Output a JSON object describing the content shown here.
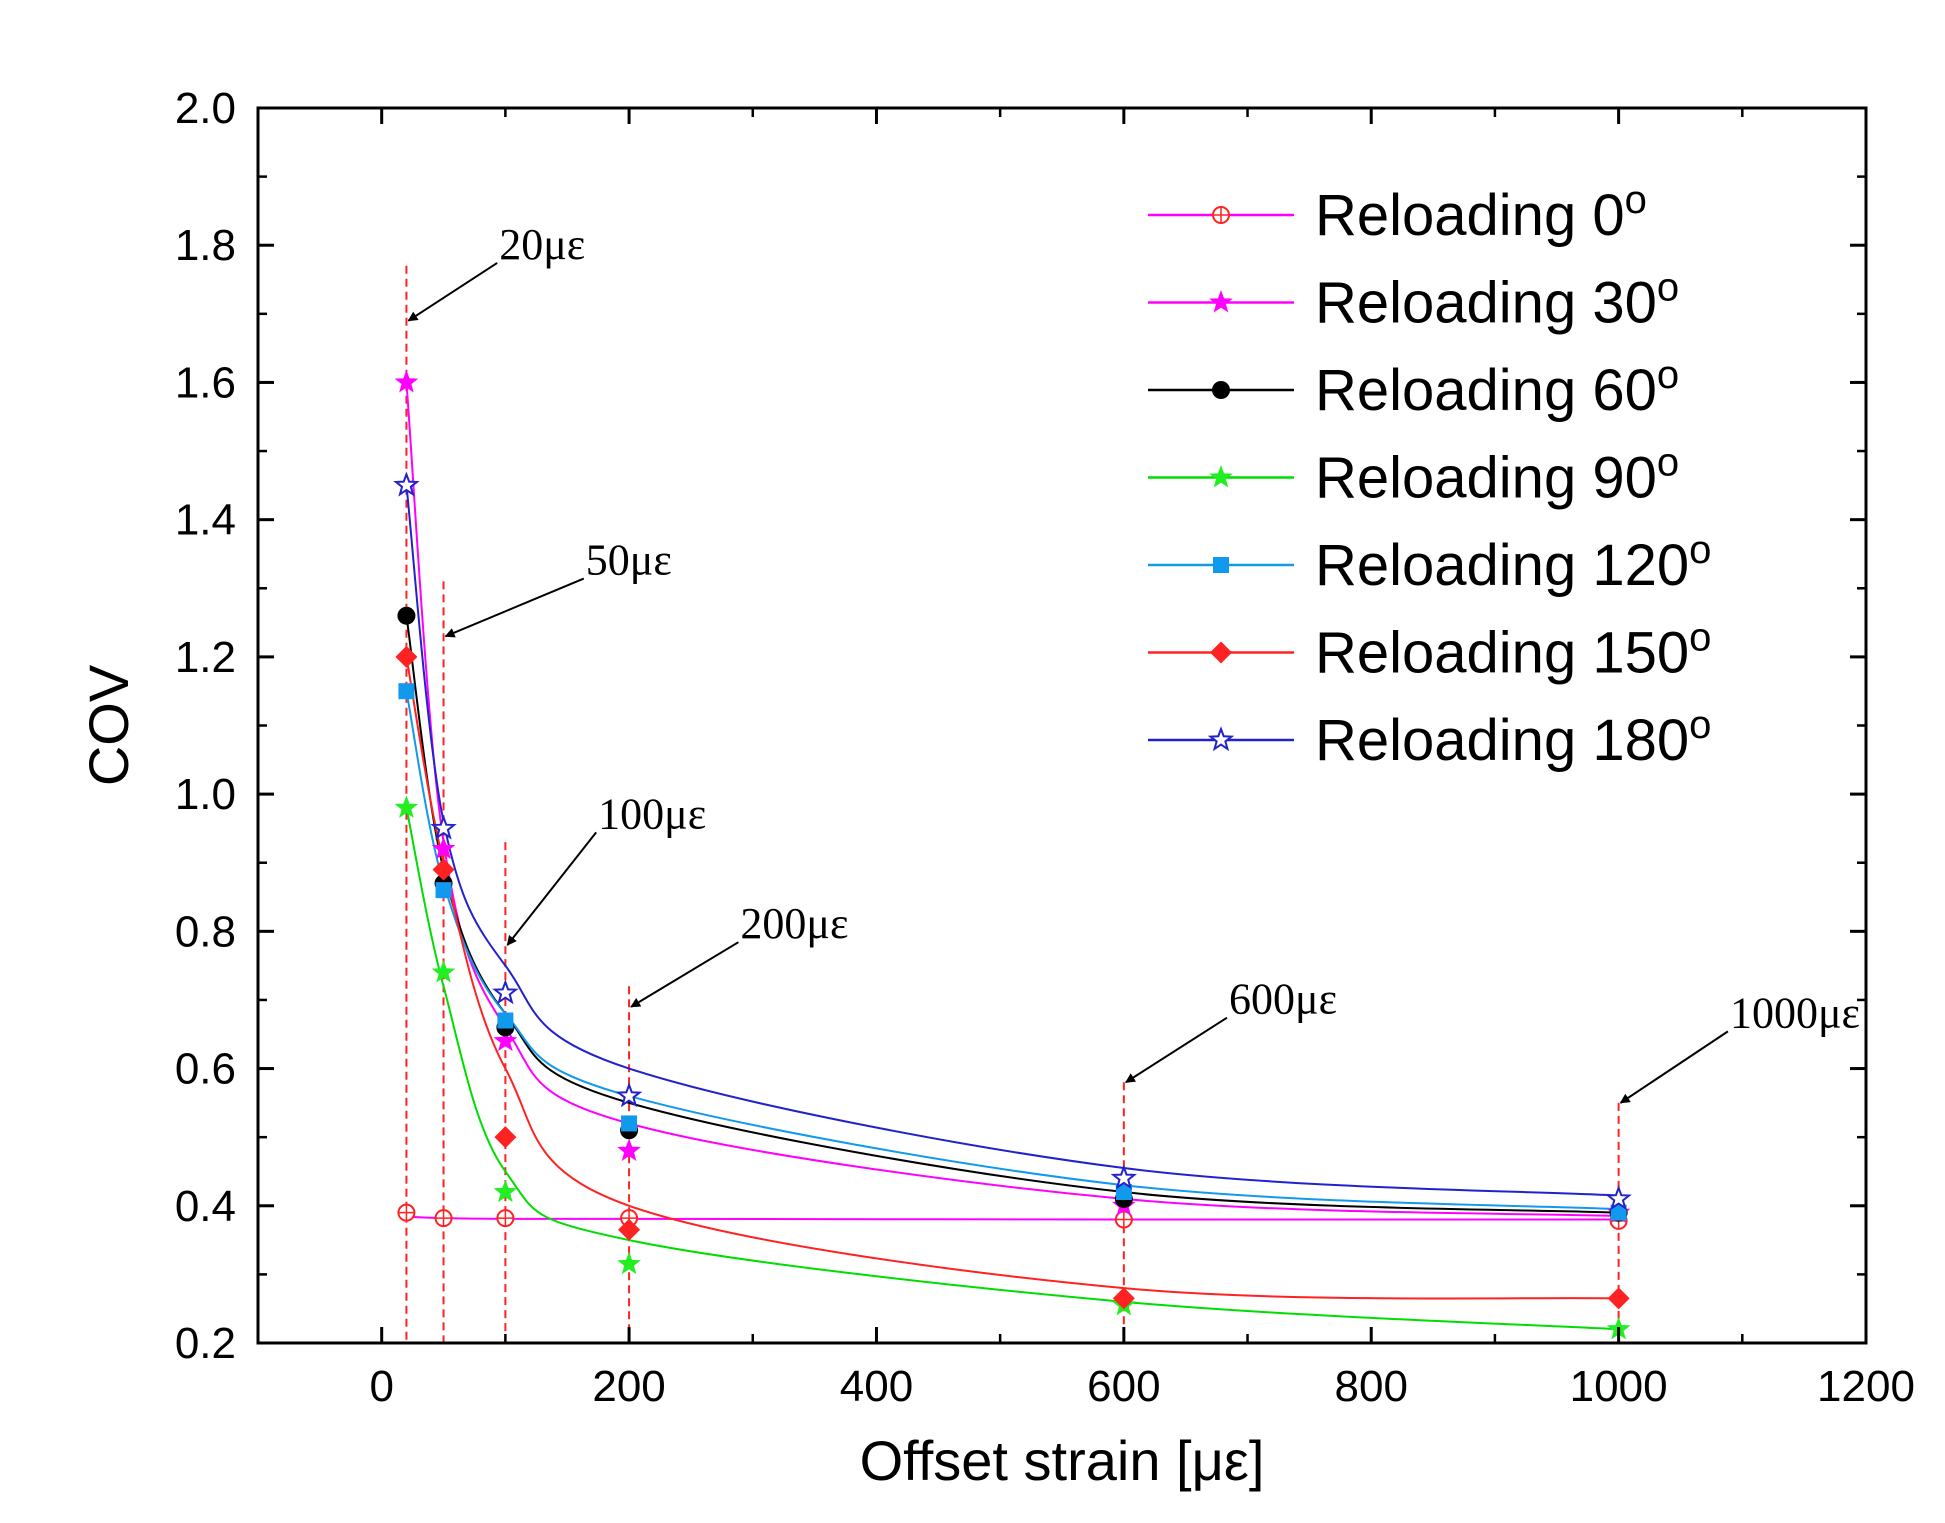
{
  "chart_data": {
    "type": "line",
    "title": "",
    "xlabel": "Offset strain [με]",
    "ylabel": "COV",
    "xlim": [
      -100,
      1200
    ],
    "ylim": [
      0.2,
      2.0
    ],
    "x_ticks": [
      "0",
      "200",
      "400",
      "600",
      "800",
      "1000",
      "1200"
    ],
    "x_tick_values": [
      0,
      200,
      400,
      600,
      800,
      1000,
      1200
    ],
    "y_ticks": [
      "0.2",
      "0.4",
      "0.6",
      "0.8",
      "1.0",
      "1.2",
      "1.4",
      "1.6",
      "1.8",
      "2.0"
    ],
    "y_tick_values": [
      0.2,
      0.4,
      0.6,
      0.8,
      1.0,
      1.2,
      1.4,
      1.6,
      1.8,
      2.0
    ],
    "legend_position": "top-right",
    "x": [
      20,
      50,
      100,
      200,
      600,
      1000
    ],
    "series": [
      {
        "name": "Reloading 0",
        "superscript": "o",
        "color": "#ff00ff",
        "marker_color": "#ff2222",
        "marker": "circle-plus",
        "values": [
          0.39,
          0.382,
          0.382,
          0.382,
          0.38,
          0.378
        ],
        "fit": [
          0.384,
          0.382,
          0.381,
          0.381,
          0.38,
          0.38
        ]
      },
      {
        "name": "Reloading 30",
        "superscript": "o",
        "color": "#ff00ff",
        "marker_color": "#ff00ff",
        "marker": "star-filled",
        "values": [
          1.6,
          0.92,
          0.64,
          0.48,
          0.4,
          0.39
        ],
        "fit": [
          1.6,
          0.93,
          0.66,
          0.52,
          0.41,
          0.385
        ]
      },
      {
        "name": "Reloading 60",
        "superscript": "o",
        "color": "#000000",
        "marker_color": "#000000",
        "marker": "circle-filled",
        "values": [
          1.26,
          0.87,
          0.66,
          0.51,
          0.41,
          0.39
        ],
        "fit": [
          1.26,
          0.89,
          0.68,
          0.55,
          0.42,
          0.39
        ]
      },
      {
        "name": "Reloading 90",
        "superscript": "o",
        "color": "#00dd00",
        "marker_color": "#22ee22",
        "marker": "star-filled",
        "values": [
          0.98,
          0.74,
          0.42,
          0.315,
          0.255,
          0.22
        ],
        "fit": [
          0.98,
          0.72,
          0.45,
          0.35,
          0.26,
          0.22
        ]
      },
      {
        "name": "Reloading 120",
        "superscript": "o",
        "color": "#1199ee",
        "marker_color": "#1199ee",
        "marker": "square-filled",
        "values": [
          1.15,
          0.86,
          0.67,
          0.52,
          0.42,
          0.39
        ],
        "fit": [
          1.15,
          0.87,
          0.68,
          0.56,
          0.43,
          0.395
        ]
      },
      {
        "name": "Reloading 150",
        "superscript": "o",
        "color": "#ff2222",
        "marker_color": "#ff2222",
        "marker": "diamond-filled",
        "values": [
          1.2,
          0.89,
          0.5,
          0.365,
          0.265,
          0.265
        ],
        "fit": [
          1.2,
          0.9,
          0.6,
          0.4,
          0.28,
          0.265
        ]
      },
      {
        "name": "Reloading 180",
        "superscript": "o",
        "color": "#2222cc",
        "marker_color": "#2222cc",
        "marker": "star-open",
        "values": [
          1.45,
          0.95,
          0.71,
          0.56,
          0.44,
          0.41
        ],
        "fit": [
          1.45,
          0.96,
          0.75,
          0.6,
          0.455,
          0.415
        ]
      }
    ],
    "reference_lines": {
      "x": [
        20,
        50,
        100,
        200,
        600,
        1000
      ],
      "y_top": [
        1.77,
        1.31,
        0.93,
        0.72,
        0.58,
        0.55
      ],
      "color": "#ff2222"
    },
    "annotations": [
      {
        "text": "20με",
        "at_x": 20,
        "at_y": 1.69,
        "label_x": 95,
        "label_y": 1.78
      },
      {
        "text": "50με",
        "at_x": 50,
        "at_y": 1.23,
        "label_x": 165,
        "label_y": 1.32
      },
      {
        "text": "100με",
        "at_x": 100,
        "at_y": 0.78,
        "label_x": 175,
        "label_y": 0.95
      },
      {
        "text": "200με",
        "at_x": 200,
        "at_y": 0.69,
        "label_x": 290,
        "label_y": 0.79
      },
      {
        "text": "600με",
        "at_x": 600,
        "at_y": 0.58,
        "label_x": 685,
        "label_y": 0.68
      },
      {
        "text": "1000με",
        "at_x": 1000,
        "at_y": 0.55,
        "label_x": 1090,
        "label_y": 0.66
      }
    ]
  }
}
